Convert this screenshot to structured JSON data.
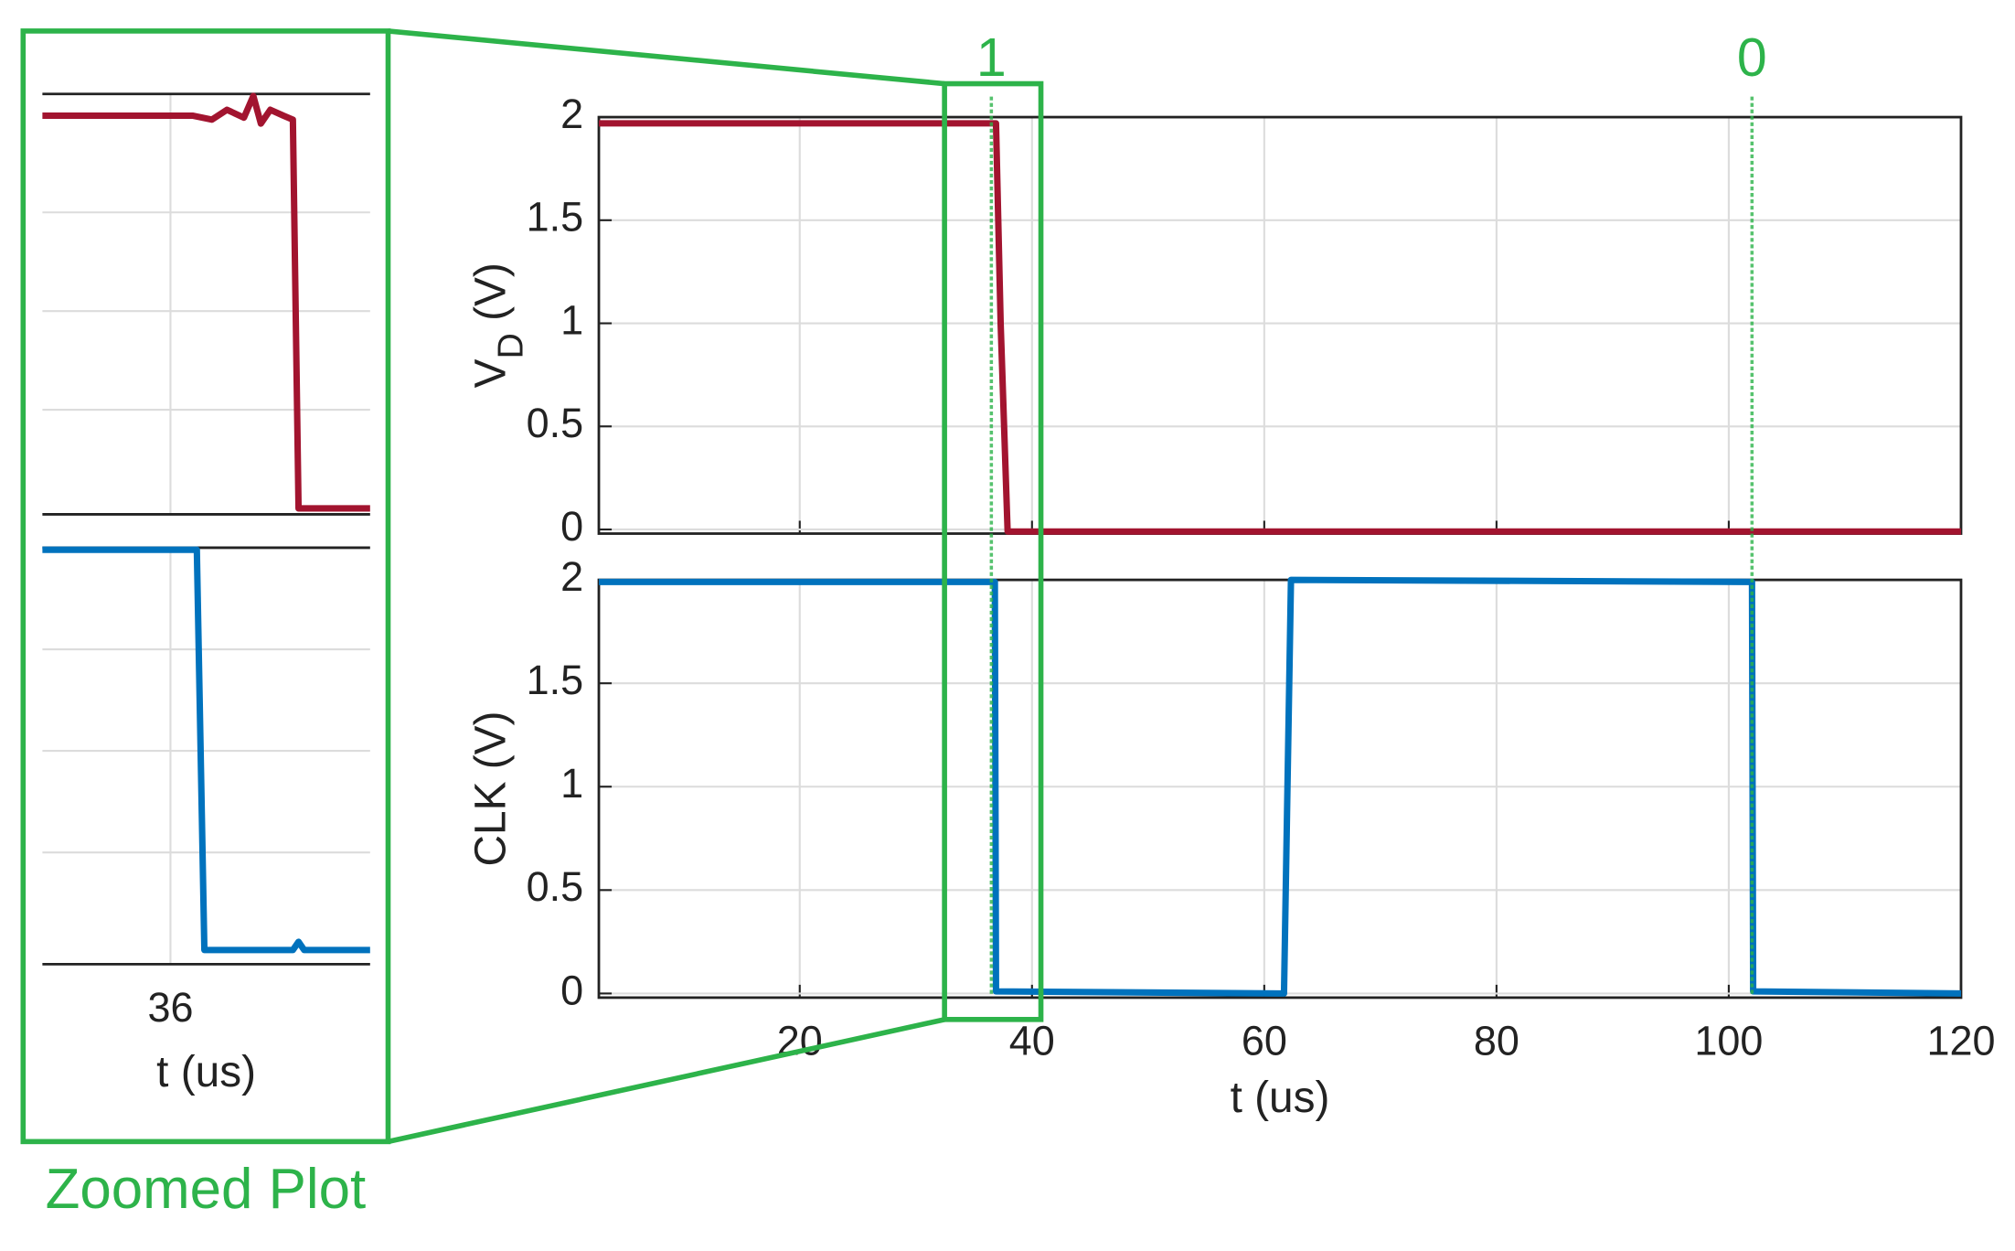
{
  "chart_data": [
    {
      "type": "line",
      "ylabel": [
        "V",
        "D",
        " (V)"
      ],
      "xlim": [
        2.7,
        120
      ],
      "ylim": [
        -0.02,
        2
      ],
      "yticks": [
        0,
        0.5,
        1,
        1.5,
        2
      ],
      "xgrid": [
        20,
        40,
        60,
        80,
        100,
        120
      ],
      "grid": true,
      "series": [
        {
          "name": "V_D",
          "color": "#a2142f",
          "x": [
            2.7,
            36.9,
            37.3,
            37.9,
            120
          ],
          "values": [
            1.97,
            1.97,
            1.0,
            -0.01,
            -0.01
          ]
        }
      ],
      "markers": [
        {
          "x": 36.5,
          "label": "1"
        },
        {
          "x": 102,
          "label": "0"
        }
      ],
      "marker_color": "#2db34a"
    },
    {
      "type": "line",
      "ylabel": [
        "CLK (V)"
      ],
      "xlabel": "t (us)",
      "xlim": [
        2.7,
        120
      ],
      "ylim": [
        -0.02,
        2
      ],
      "yticks": [
        0,
        0.5,
        1,
        1.5,
        2
      ],
      "xticks": [
        20,
        40,
        60,
        80,
        100,
        120
      ],
      "grid": true,
      "series": [
        {
          "name": "CLK",
          "color": "#0072bd",
          "x": [
            2.7,
            36.8,
            36.9,
            61.7,
            62.3,
            102.0,
            102.1,
            120
          ],
          "values": [
            1.99,
            1.99,
            0.01,
            0,
            2.0,
            1.99,
            0.01,
            0
          ]
        }
      ]
    },
    {
      "type": "line",
      "xlim": [
        35.32,
        37.06
      ],
      "ylim": [
        -0.03,
        2.1
      ],
      "ygrid": [
        0.5,
        1,
        1.5
      ],
      "xgrid": [
        36
      ],
      "grid": true,
      "series": [
        {
          "name": "V_D",
          "color": "#a2142f",
          "x": [
            35.32,
            36.12,
            36.22,
            36.3,
            36.39,
            36.44,
            36.48,
            36.53,
            36.6,
            36.65,
            36.68,
            37.06
          ],
          "values": [
            1.99,
            1.99,
            1.97,
            2.02,
            1.98,
            2.09,
            1.95,
            2.02,
            1.99,
            1.97,
            0,
            0
          ]
        }
      ]
    },
    {
      "type": "line",
      "xlabel": "t (us)",
      "xlim": [
        35.32,
        37.06
      ],
      "ylim": [
        -0.05,
        2.0
      ],
      "ygrid": [
        0.5,
        1,
        1.5
      ],
      "xticks": [
        36
      ],
      "grid": true,
      "series": [
        {
          "name": "CLK",
          "color": "#0072bd",
          "x": [
            35.32,
            36.14,
            36.18,
            36.65,
            36.68,
            36.71,
            37.06
          ],
          "values": [
            1.99,
            1.99,
            0.02,
            0.02,
            0.06,
            0.02,
            0.02
          ]
        }
      ]
    }
  ],
  "zoom_label": "Zoomed Plot"
}
